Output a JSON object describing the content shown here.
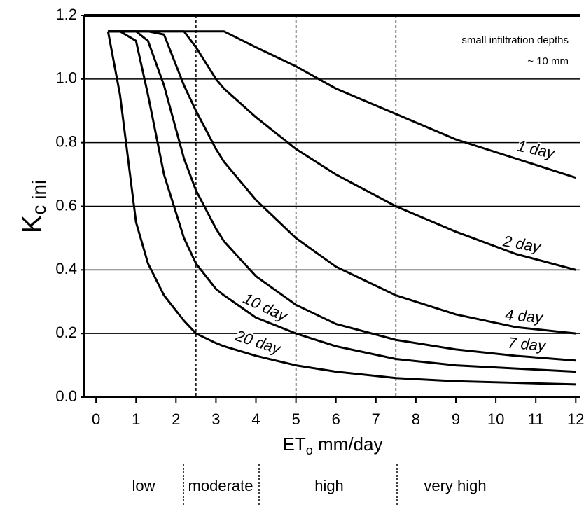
{
  "chart_data": {
    "type": "line",
    "ylabel": "K",
    "ylabel_sub": "c ini",
    "xlabel": "ET",
    "xlabel_sub": "o",
    "xlabel_rest": " mm/day",
    "annotations": [
      "small infiltration depths",
      "~ 10 mm"
    ],
    "x": [
      0.3,
      0.6,
      1,
      1.3,
      1.7,
      2.2,
      2.5,
      3,
      3.2,
      4,
      5,
      6,
      7.5,
      9,
      10.5,
      12
    ],
    "series": [
      {
        "name": "1 day",
        "color": "#000000",
        "values": [
          1.15,
          1.15,
          1.15,
          1.15,
          1.15,
          1.15,
          1.15,
          1.15,
          1.15,
          1.1,
          1.04,
          0.97,
          0.89,
          0.81,
          0.75,
          0.69
        ]
      },
      {
        "name": "2 day",
        "color": "#000000",
        "values": [
          1.15,
          1.15,
          1.15,
          1.15,
          1.15,
          1.15,
          1.1,
          1.0,
          0.97,
          0.88,
          0.78,
          0.7,
          0.6,
          0.52,
          0.45,
          0.4
        ]
      },
      {
        "name": "4 day",
        "color": "#000000",
        "values": [
          1.15,
          1.15,
          1.15,
          1.15,
          1.14,
          0.98,
          0.9,
          0.78,
          0.74,
          0.62,
          0.5,
          0.41,
          0.32,
          0.26,
          0.22,
          0.2
        ]
      },
      {
        "name": "7 day",
        "color": "#000000",
        "values": [
          1.15,
          1.15,
          1.15,
          1.12,
          0.98,
          0.75,
          0.65,
          0.53,
          0.49,
          0.38,
          0.29,
          0.23,
          0.18,
          0.15,
          0.13,
          0.115
        ]
      },
      {
        "name": "10 day",
        "color": "#000000",
        "values": [
          1.15,
          1.15,
          1.12,
          0.95,
          0.7,
          0.5,
          0.42,
          0.34,
          0.32,
          0.25,
          0.2,
          0.16,
          0.12,
          0.1,
          0.09,
          0.08
        ]
      },
      {
        "name": "20 day",
        "color": "#000000",
        "values": [
          1.15,
          0.95,
          0.55,
          0.42,
          0.32,
          0.24,
          0.2,
          0.17,
          0.16,
          0.13,
          0.1,
          0.08,
          0.06,
          0.05,
          0.045,
          0.04
        ]
      }
    ],
    "xlim": [
      -0.3,
      12.1
    ],
    "ylim": [
      0,
      1.2
    ],
    "xticks": [
      0,
      1,
      2,
      3,
      4,
      5,
      6,
      7,
      8,
      9,
      10,
      11,
      12
    ],
    "yticks": [
      {
        "value": 0,
        "label": "0.0"
      },
      0.2,
      0.4,
      0.6,
      0.8,
      {
        "value": 1,
        "label": "1.0"
      },
      1.2
    ],
    "grid": true,
    "zone_edges": [
      2.5,
      5,
      7.5
    ],
    "zones": [
      "low",
      "moderate",
      "high",
      "very high"
    ]
  }
}
